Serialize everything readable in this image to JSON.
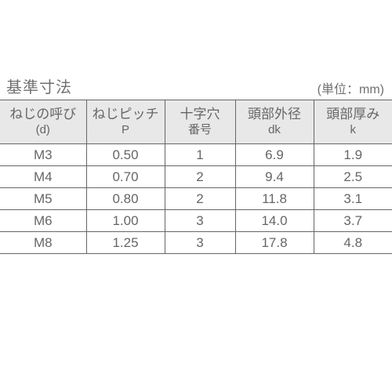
{
  "title": "基準寸法",
  "unit": "(単位：mm)",
  "table": {
    "columns": [
      {
        "line1": "ねじの呼び",
        "line2": "(d)"
      },
      {
        "line1": "ねじピッチ",
        "line2": "P"
      },
      {
        "line1": "十字穴",
        "line2": "番号"
      },
      {
        "line1": "頭部外径",
        "line2": "dk"
      },
      {
        "line1": "頭部厚み",
        "line2": "k"
      }
    ],
    "rows": [
      [
        "M3",
        "0.50",
        "1",
        "6.9",
        "1.9"
      ],
      [
        "M4",
        "0.70",
        "2",
        "9.4",
        "2.5"
      ],
      [
        "M5",
        "0.80",
        "2",
        "11.8",
        "3.1"
      ],
      [
        "M6",
        "1.00",
        "3",
        "14.0",
        "3.7"
      ],
      [
        "M8",
        "1.25",
        "3",
        "17.8",
        "4.8"
      ]
    ]
  },
  "style": {
    "header_bg": "#e8e8e8",
    "border_color": "#666666",
    "text_color": "#666666",
    "cell_bg": "#ffffff"
  }
}
